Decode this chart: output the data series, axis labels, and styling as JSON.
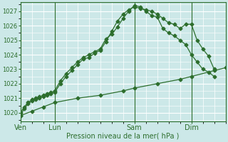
{
  "xlabel": "Pression niveau de la mer( hPa )",
  "bg_color": "#cce8e8",
  "grid_color": "#ffffff",
  "line_color": "#2d6e2d",
  "ylim": [
    1019.4,
    1027.6
  ],
  "yticks": [
    1020,
    1021,
    1022,
    1023,
    1024,
    1025,
    1026,
    1027
  ],
  "xtick_labels": [
    "Ven",
    "Lun",
    "Sam",
    "Dim"
  ],
  "xtick_positions": [
    0,
    36,
    120,
    180
  ],
  "total_hours": 216,
  "vline_positions": [
    0,
    36,
    120,
    180
  ],
  "line1_x": [
    0,
    4,
    8,
    12,
    16,
    20,
    24,
    28,
    32,
    36,
    42,
    48,
    54,
    60,
    66,
    72,
    78,
    84,
    90,
    96,
    102,
    108,
    114,
    120,
    126,
    132,
    138,
    144,
    150,
    156,
    162,
    168,
    174,
    180,
    186,
    192,
    198,
    204
  ],
  "line1_y": [
    1019.8,
    1020.3,
    1020.6,
    1020.8,
    1020.9,
    1021.0,
    1021.1,
    1021.2,
    1021.3,
    1021.4,
    1022.0,
    1022.5,
    1022.9,
    1023.3,
    1023.7,
    1023.8,
    1024.1,
    1024.3,
    1024.9,
    1025.6,
    1026.3,
    1026.8,
    1027.1,
    1027.3,
    1027.2,
    1027.1,
    1027.0,
    1026.8,
    1026.5,
    1026.2,
    1026.1,
    1025.8,
    1026.1,
    1026.1,
    1025.0,
    1024.4,
    1023.9,
    1023.0
  ],
  "line2_x": [
    0,
    4,
    8,
    12,
    16,
    20,
    24,
    28,
    32,
    36,
    42,
    48,
    54,
    60,
    66,
    72,
    78,
    84,
    90,
    96,
    102,
    108,
    114,
    120,
    126,
    132,
    138,
    144,
    150,
    156,
    162,
    168,
    174,
    180,
    186,
    192,
    198,
    204
  ],
  "line2_y": [
    1020.0,
    1020.4,
    1020.7,
    1020.9,
    1021.0,
    1021.1,
    1021.2,
    1021.3,
    1021.4,
    1021.5,
    1022.2,
    1022.7,
    1023.1,
    1023.5,
    1023.8,
    1024.0,
    1024.2,
    1024.4,
    1025.1,
    1025.4,
    1025.9,
    1026.5,
    1027.0,
    1027.4,
    1027.3,
    1027.0,
    1026.7,
    1026.6,
    1025.8,
    1025.5,
    1025.3,
    1025.0,
    1024.7,
    1024.0,
    1023.5,
    1023.0,
    1022.8,
    1022.5
  ],
  "line3_x": [
    0,
    12,
    24,
    36,
    60,
    84,
    108,
    120,
    144,
    168,
    180,
    204,
    216
  ],
  "line3_y": [
    1019.8,
    1020.1,
    1020.4,
    1020.7,
    1021.0,
    1021.2,
    1021.5,
    1021.7,
    1022.0,
    1022.3,
    1022.5,
    1022.9,
    1023.1
  ]
}
